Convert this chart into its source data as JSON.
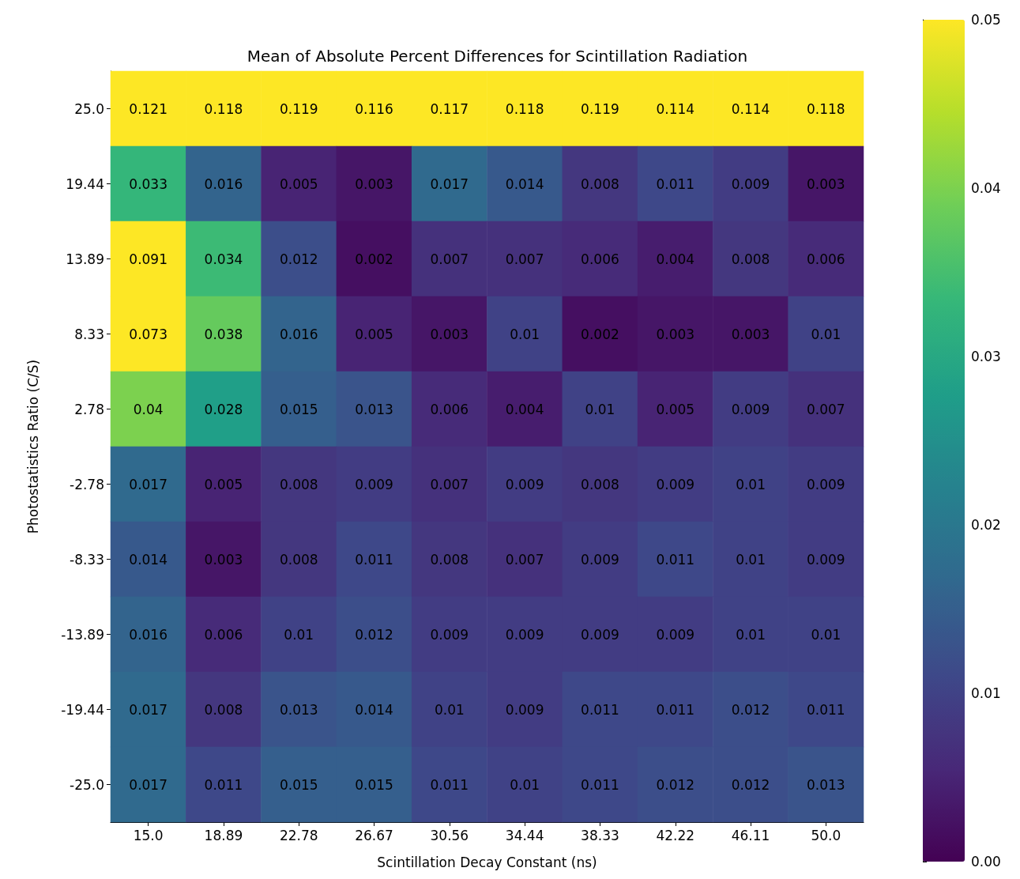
{
  "chart_data": {
    "type": "heatmap",
    "title": "Mean of Absolute Percent Differences for Scintillation Radiation",
    "xlabel": "Scintillation Decay Constant (ns)",
    "ylabel": "Photostatistics Ratio (C/S)",
    "categories": [
      "15.0",
      "18.89",
      "22.78",
      "26.67",
      "30.56",
      "34.44",
      "38.33",
      "42.22",
      "46.11",
      "50.0"
    ],
    "y_categories": [
      "25.0",
      "19.44",
      "13.89",
      "8.33",
      "2.78",
      "-2.78",
      "-8.33",
      "-13.89",
      "-19.44",
      "-25.0"
    ],
    "cells": [
      [
        0.121,
        0.118,
        0.119,
        0.116,
        0.117,
        0.118,
        0.119,
        0.114,
        0.114,
        0.118
      ],
      [
        0.033,
        0.016,
        0.005,
        0.003,
        0.017,
        0.014,
        0.008,
        0.011,
        0.009,
        0.003
      ],
      [
        0.091,
        0.034,
        0.012,
        0.002,
        0.007,
        0.007,
        0.006,
        0.004,
        0.008,
        0.006
      ],
      [
        0.073,
        0.038,
        0.016,
        0.005,
        0.003,
        0.01,
        0.002,
        0.003,
        0.003,
        0.01
      ],
      [
        0.04,
        0.028,
        0.015,
        0.013,
        0.006,
        0.004,
        0.01,
        0.005,
        0.009,
        0.007
      ],
      [
        0.017,
        0.005,
        0.008,
        0.009,
        0.007,
        0.009,
        0.008,
        0.009,
        0.01,
        0.009
      ],
      [
        0.014,
        0.003,
        0.008,
        0.011,
        0.008,
        0.007,
        0.009,
        0.011,
        0.01,
        0.009
      ],
      [
        0.016,
        0.006,
        0.01,
        0.012,
        0.009,
        0.009,
        0.009,
        0.009,
        0.01,
        0.01
      ],
      [
        0.017,
        0.008,
        0.013,
        0.014,
        0.01,
        0.009,
        0.011,
        0.011,
        0.012,
        0.011
      ],
      [
        0.017,
        0.011,
        0.015,
        0.015,
        0.011,
        0.01,
        0.011,
        0.012,
        0.012,
        0.013
      ]
    ],
    "clim": [
      0,
      0.05
    ],
    "cticks": [
      {
        "value": 0,
        "label": "0.00"
      },
      0.01,
      0.02,
      0.03,
      0.04,
      0.05
    ],
    "data_labels": true
  }
}
